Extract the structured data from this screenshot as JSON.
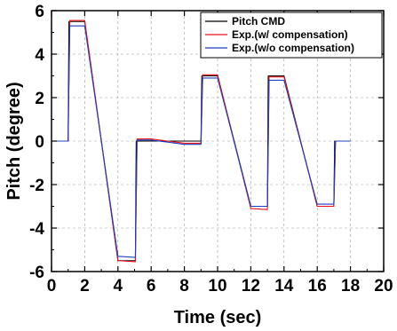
{
  "chart_data": {
    "type": "line",
    "title": "",
    "xlabel": "Time (sec)",
    "ylabel": "Pitch (degree)",
    "xlim": [
      0,
      20
    ],
    "ylim": [
      -6,
      6
    ],
    "x_ticks": [
      0,
      2,
      4,
      6,
      8,
      10,
      12,
      14,
      16,
      18,
      20
    ],
    "y_ticks": [
      6,
      4,
      2,
      0,
      -2,
      -4,
      -6
    ],
    "grid": true,
    "legend_position": "top-right",
    "series": [
      {
        "name": "Pitch CMD",
        "color": "#000000",
        "x": [
          0,
          1.0,
          1.05,
          2.0,
          4.0,
          5.05,
          5.1,
          6.0,
          7.0,
          8.0,
          9.0,
          9.05,
          10.0,
          12.0,
          13.0,
          13.05,
          14.0,
          16.0,
          17.0,
          17.05,
          18.0
        ],
        "y": [
          0,
          0,
          5.5,
          5.5,
          -5.5,
          -5.5,
          0,
          0,
          0,
          0,
          0,
          3.0,
          3.0,
          -3.0,
          -3.0,
          3.0,
          3.0,
          -3.0,
          -3.0,
          0,
          0
        ]
      },
      {
        "name": "Exp.(w/ compensation)",
        "color": "#e8141c",
        "x": [
          0,
          1.0,
          1.1,
          2.0,
          4.0,
          5.05,
          5.15,
          6.0,
          7.0,
          8.0,
          9.0,
          9.1,
          10.0,
          12.0,
          13.0,
          13.1,
          14.0,
          16.0,
          17.0,
          17.1,
          18.0
        ],
        "y": [
          0,
          0,
          5.55,
          5.55,
          -5.5,
          -5.55,
          0.1,
          0.1,
          0.0,
          -0.1,
          -0.1,
          3.05,
          3.05,
          -3.1,
          -3.15,
          2.95,
          2.95,
          -3.0,
          -3.0,
          0,
          0
        ]
      },
      {
        "name": "Exp.(w/o compensation)",
        "color": "#1f3fbf",
        "x": [
          0,
          1.0,
          1.1,
          2.0,
          4.0,
          5.05,
          5.15,
          6.0,
          7.0,
          8.0,
          9.0,
          9.1,
          10.0,
          12.0,
          13.0,
          13.1,
          14.0,
          16.0,
          17.0,
          17.1,
          18.0
        ],
        "y": [
          0,
          0,
          5.3,
          5.3,
          -5.3,
          -5.35,
          0.05,
          0.05,
          -0.05,
          -0.15,
          -0.15,
          2.9,
          2.9,
          -3.0,
          -3.0,
          2.8,
          2.8,
          -2.9,
          -2.9,
          0,
          0
        ]
      }
    ]
  }
}
